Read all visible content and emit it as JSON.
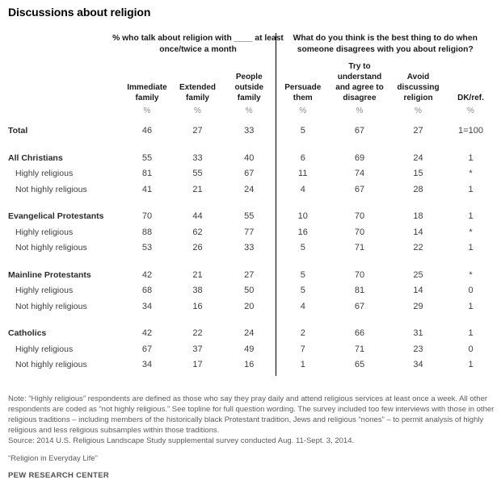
{
  "title": "Discussions about religion",
  "chart_data": {
    "type": "table",
    "title": "Discussions about religion",
    "group_headers": [
      "% who talk about religion with ____ at least once/twice a month",
      "What do you think is the best thing to do when someone disagrees with you about religion?"
    ],
    "columns": [
      "Immediate family",
      "Extended family",
      "People outside family",
      "Persuade them",
      "Try to understand and agree to disagree",
      "Avoid discussing religion",
      "DK/ref."
    ],
    "units": [
      "%",
      "%",
      "%",
      "%",
      "%",
      "%",
      "%"
    ],
    "rows": [
      {
        "label": "Total",
        "values": [
          "46",
          "27",
          "33",
          "5",
          "67",
          "27",
          "1=100"
        ]
      },
      {
        "label": "All Christians",
        "values": [
          "55",
          "33",
          "40",
          "6",
          "69",
          "24",
          "1"
        ]
      },
      {
        "label": "Highly religious",
        "values": [
          "81",
          "55",
          "67",
          "11",
          "74",
          "15",
          "*"
        ]
      },
      {
        "label": "Not highly religious",
        "values": [
          "41",
          "21",
          "24",
          "4",
          "67",
          "28",
          "1"
        ]
      },
      {
        "label": "Evangelical Protestants",
        "values": [
          "70",
          "44",
          "55",
          "10",
          "70",
          "18",
          "1"
        ]
      },
      {
        "label": "Highly religious",
        "values": [
          "88",
          "62",
          "77",
          "16",
          "70",
          "14",
          "*"
        ]
      },
      {
        "label": "Not highly religious",
        "values": [
          "53",
          "26",
          "33",
          "5",
          "71",
          "22",
          "1"
        ]
      },
      {
        "label": "Mainline Protestants",
        "values": [
          "42",
          "21",
          "27",
          "5",
          "70",
          "25",
          "*"
        ]
      },
      {
        "label": "Highly religious",
        "values": [
          "68",
          "38",
          "50",
          "5",
          "81",
          "14",
          "0"
        ]
      },
      {
        "label": "Not highly religious",
        "values": [
          "34",
          "16",
          "20",
          "4",
          "67",
          "29",
          "1"
        ]
      },
      {
        "label": "Catholics",
        "values": [
          "42",
          "22",
          "24",
          "2",
          "66",
          "31",
          "1"
        ]
      },
      {
        "label": "Highly religious",
        "values": [
          "67",
          "37",
          "49",
          "7",
          "71",
          "23",
          "0"
        ]
      },
      {
        "label": "Not highly religious",
        "values": [
          "34",
          "17",
          "16",
          "1",
          "65",
          "34",
          "1"
        ]
      }
    ]
  },
  "footer": {
    "note": "Note: “Highly religious” respondents are defined as those who say they pray daily and attend religious services at least once a week. All other respondents are coded as “not highly religious.” See topline for full question wording. The survey included too few interviews with those in other religious traditions – including members of the historically black Protestant tradition, Jews and religious “nones” – to permit analysis of highly religious and less religious subsamples within those traditions.",
    "source": "Source: 2014 U.S. Religious Landscape Study supplemental survey conducted Aug. 11-Sept. 3, 2014.",
    "report": "“Religion in Everyday Life”",
    "org": "PEW RESEARCH CENTER"
  }
}
